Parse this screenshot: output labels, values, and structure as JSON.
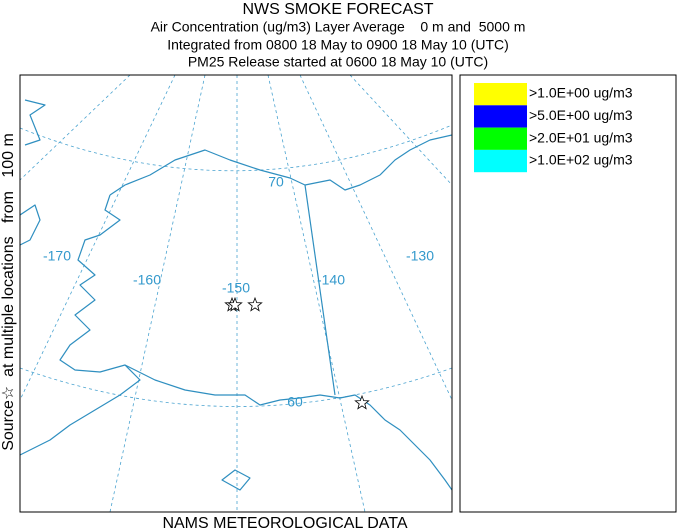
{
  "header": {
    "title": "NWS SMOKE FORECAST",
    "lines": [
      "Air Concentration (ug/m3) Layer Average    0 m and  5000 m",
      "Integrated from 0800 18 May to 0900 18 May 10 (UTC)",
      "PM25 Release started at 0600 18 May 10 (UTC)"
    ]
  },
  "side_label": "Source☆  at multiple locations   from   100 m",
  "footer": "NAMS METEOROLOGICAL DATA",
  "legend": [
    {
      "label": ">1.0E+00 ug/m3",
      "color": "#ffff00"
    },
    {
      "label": ">5.0E+00 ug/m3",
      "color": "#0000ff"
    },
    {
      "label": ">2.0E+01 ug/m3",
      "color": "#00ff00"
    },
    {
      "label": ">1.0E+02 ug/m3",
      "color": "#00ffff"
    }
  ],
  "map": {
    "longitude_labels": [
      "-170",
      "-160",
      "-150",
      "-140",
      "-130"
    ],
    "latitude_labels": [
      "70",
      "60"
    ]
  }
}
